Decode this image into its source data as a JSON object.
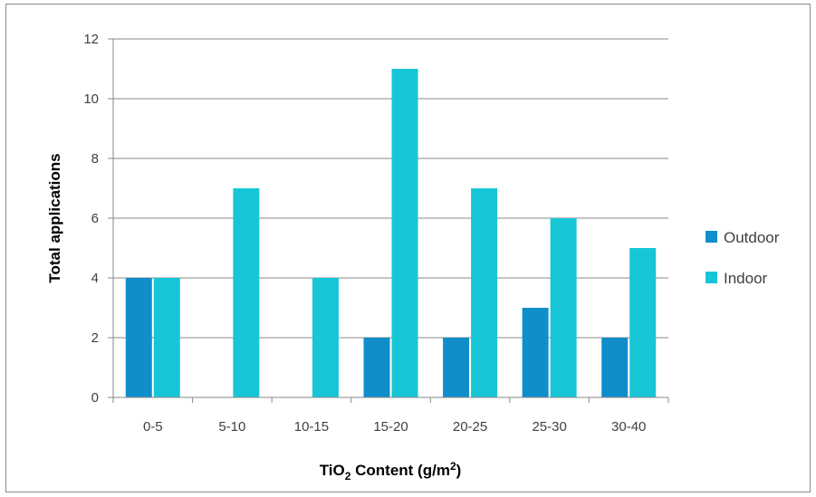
{
  "chart_data": {
    "type": "bar",
    "categories": [
      "0-5",
      "5-10",
      "10-15",
      "15-20",
      "20-25",
      "25-30",
      "30-40"
    ],
    "series": [
      {
        "name": "Outdoor",
        "values": [
          4,
          0,
          0,
          2,
          2,
          3,
          2
        ],
        "color": "#0f8ecb"
      },
      {
        "name": "Indoor",
        "values": [
          4,
          7,
          4,
          11,
          7,
          6,
          5
        ],
        "color": "#17c6d6"
      }
    ],
    "xlabel": {
      "pre": "TiO",
      "sub": "2",
      "mid": " Content (g/m",
      "sup": "2",
      "post": ")"
    },
    "ylabel": "Total applications",
    "ylim": [
      0,
      12
    ],
    "yticks": [
      0,
      2,
      4,
      6,
      8,
      10,
      12
    ],
    "grid": true,
    "legend_position": "right"
  }
}
